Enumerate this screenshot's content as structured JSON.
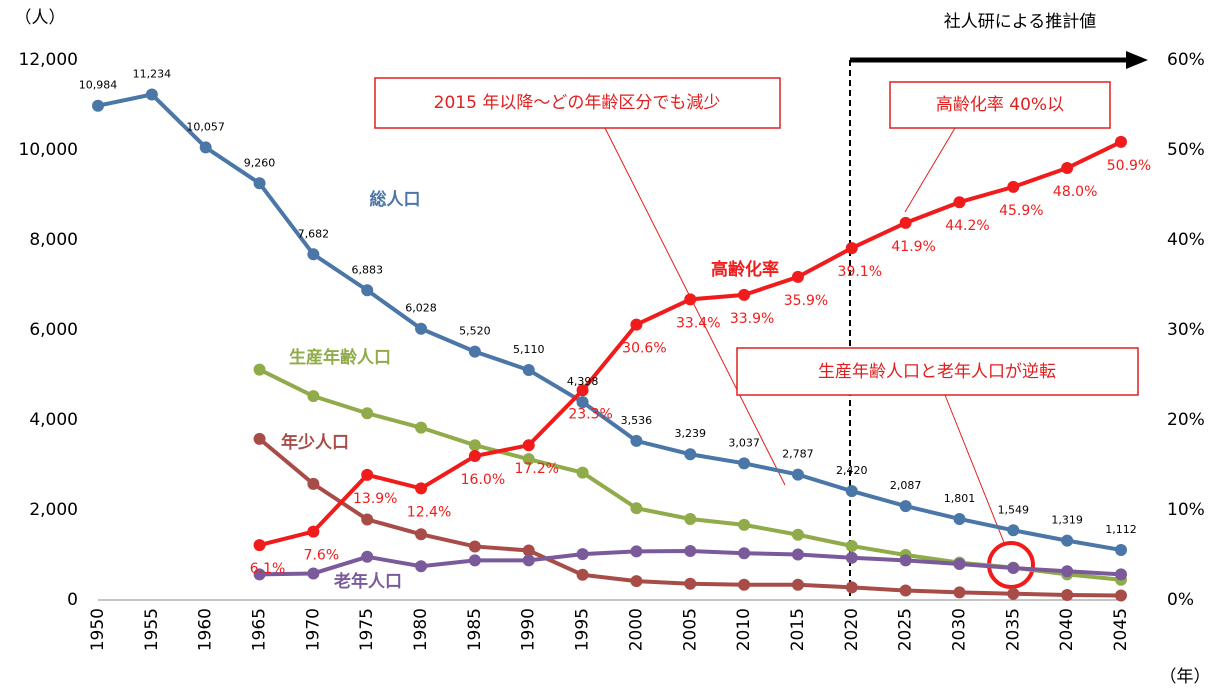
{
  "chart_data": {
    "type": "line",
    "y_axis_label": "（人）",
    "x_axis_label": "（年）",
    "categories": [
      "1950",
      "1955",
      "1960",
      "1965",
      "1970",
      "1975",
      "1980",
      "1985",
      "1990",
      "1995",
      "2000",
      "2005",
      "2010",
      "2015",
      "2020",
      "2025",
      "2030",
      "2035",
      "2040",
      "2045"
    ],
    "ylim": [
      0,
      12000
    ],
    "yticks": [
      {
        "value": 0,
        "label": "0"
      },
      {
        "value": 2000,
        "label": "2,000"
      },
      {
        "value": 4000,
        "label": "4,000"
      },
      {
        "value": 6000,
        "label": "6,000"
      },
      {
        "value": 8000,
        "label": "8,000"
      },
      {
        "value": 10000,
        "label": "10,000"
      },
      {
        "value": 12000,
        "label": "12,000"
      }
    ],
    "y2lim": [
      0,
      60
    ],
    "y2ticks": [
      {
        "value": 0,
        "label": "0%"
      },
      {
        "value": 10,
        "label": "10%"
      },
      {
        "value": 20,
        "label": "20%"
      },
      {
        "value": 30,
        "label": "30%"
      },
      {
        "value": 40,
        "label": "40%"
      },
      {
        "value": 50,
        "label": "50%"
      },
      {
        "value": 60,
        "label": "60%"
      }
    ],
    "grid": false,
    "series": [
      {
        "name": "総人口",
        "color": "#4a76a8",
        "values": [
          10984,
          11234,
          10057,
          9260,
          7682,
          6883,
          6028,
          5520,
          5110,
          4398,
          3536,
          3239,
          3037,
          2787,
          2420,
          2087,
          1801,
          1549,
          1319,
          1112
        ],
        "value_labels": [
          "10,984",
          "11,234",
          "10,057",
          "9,260",
          "7,682",
          "6,883",
          "6,028",
          "5,520",
          "5,110",
          "4,398",
          "3,536",
          "3,239",
          "3,037",
          "2,787",
          "2,420",
          "2,087",
          "1,801",
          "1,549",
          "1,319",
          "1,112"
        ]
      },
      {
        "name": "生産年齢人口",
        "color": "#8fab4a",
        "values": [
          null,
          null,
          null,
          5120,
          4530,
          4150,
          3830,
          3440,
          3130,
          2830,
          2040,
          1800,
          1670,
          1450,
          1200,
          1000,
          830,
          720,
          570,
          450
        ]
      },
      {
        "name": "年少人口",
        "color": "#a84c48",
        "values": [
          null,
          null,
          null,
          3580,
          2580,
          1790,
          1460,
          1190,
          1100,
          560,
          420,
          360,
          340,
          340,
          280,
          210,
          170,
          140,
          110,
          100
        ]
      },
      {
        "name": "老年人口",
        "color": "#7a5a9a",
        "values": [
          null,
          null,
          null,
          570,
          590,
          960,
          750,
          880,
          880,
          1020,
          1080,
          1090,
          1040,
          1010,
          940,
          880,
          800,
          710,
          640,
          570
        ]
      },
      {
        "name": "高齢化率",
        "color": "#f01c1c",
        "axis": "y2",
        "values": [
          null,
          null,
          null,
          6.1,
          7.6,
          13.9,
          12.4,
          16.0,
          17.2,
          23.3,
          30.6,
          33.4,
          33.9,
          35.9,
          39.1,
          41.9,
          44.2,
          45.9,
          48.0,
          50.9
        ],
        "value_labels": [
          null,
          null,
          null,
          "6.1%",
          "7.6%",
          "13.9%",
          "12.4%",
          "16.0%",
          "17.2%",
          "23.3%",
          "30.6%",
          "33.4%",
          "33.9%",
          "35.9%",
          "39.1%",
          "41.9%",
          "44.2%",
          "45.9%",
          "48.0%",
          "50.9%"
        ]
      }
    ],
    "annotations": [
      "社人研による推計値",
      "2015 年以降～どの年齢区分でも減少",
      "高齢化率 40%以",
      "生産年齢人口と老年人口が逆転"
    ]
  }
}
